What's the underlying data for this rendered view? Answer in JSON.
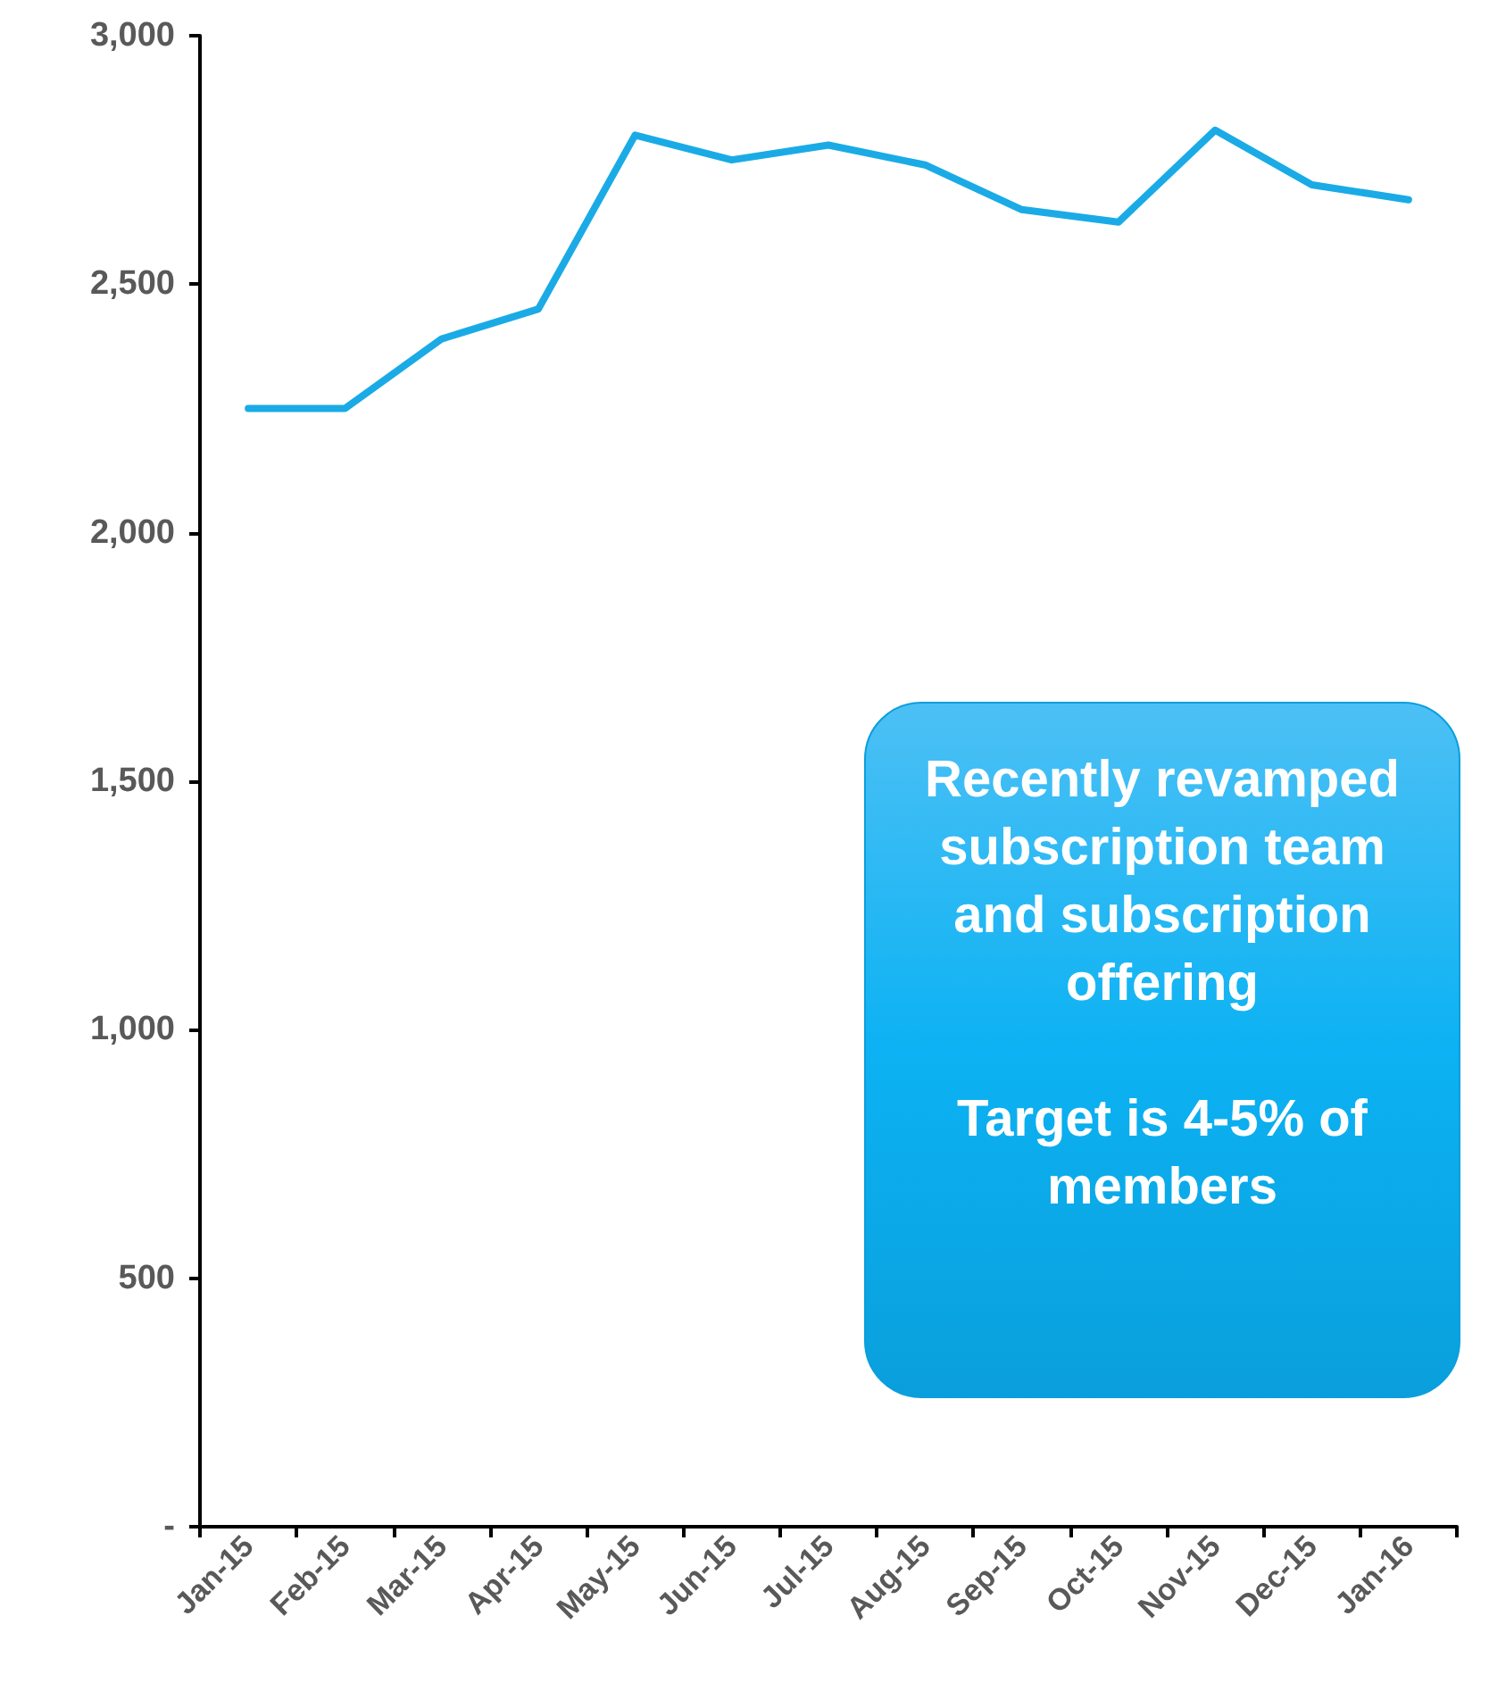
{
  "chart_data": {
    "type": "line",
    "categories": [
      "Jan-15",
      "Feb-15",
      "Mar-15",
      "Apr-15",
      "May-15",
      "Jun-15",
      "Jul-15",
      "Aug-15",
      "Sep-15",
      "Oct-15",
      "Nov-15",
      "Dec-15",
      "Jan-16"
    ],
    "series": [
      {
        "color": "#1aabe6",
        "values": [
          2250,
          2250,
          2390,
          2450,
          2800,
          2750,
          2780,
          2740,
          2650,
          2625,
          2810,
          2700,
          2670
        ]
      }
    ],
    "ylim": [
      0,
      3000
    ],
    "yticks": [
      {
        "value": 0,
        "label": "-"
      },
      {
        "value": 500,
        "label": "500"
      },
      {
        "value": 1000,
        "label": "1,000"
      },
      {
        "value": 1500,
        "label": "1,500"
      },
      {
        "value": 2000,
        "label": "2,000"
      },
      {
        "value": 2500,
        "label": "2,500"
      },
      {
        "value": 3000,
        "label": "3,000"
      }
    ],
    "grid": false,
    "marker": "none",
    "line_style": "solid",
    "annotations": [
      "Recently revamped subscription team and subscription offering",
      "Target is 4-5% of members"
    ]
  }
}
